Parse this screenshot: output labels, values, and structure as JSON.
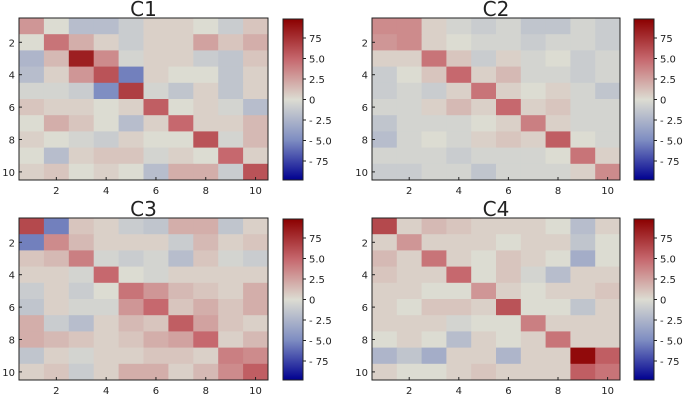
{
  "chart_data": [
    {
      "type": "heatmap",
      "title": "C1",
      "colormap": "diverging blue-white-red",
      "vmin": -1,
      "vmax": 1,
      "xticks": [
        "2",
        "4",
        "6",
        "8",
        "10"
      ],
      "yticks": [
        "2",
        "4",
        "6",
        "8",
        "10"
      ],
      "colorbar_ticks": [
        "75",
        "5.0",
        "2.5",
        "0",
        "- 2.5",
        "- 5.0",
        "- 75"
      ],
      "matrix": [
        [
          0.3,
          0.0,
          -0.2,
          -0.2,
          -0.1,
          0.05,
          0.05,
          0.0,
          -0.1,
          0.1
        ],
        [
          0.0,
          0.45,
          0.2,
          0.05,
          -0.1,
          0.05,
          0.05,
          0.25,
          0.1,
          0.2
        ],
        [
          -0.25,
          0.15,
          0.85,
          0.35,
          -0.05,
          0.05,
          0.05,
          -0.1,
          -0.15,
          0.1
        ],
        [
          -0.2,
          0.05,
          0.3,
          0.6,
          -0.55,
          0.05,
          0.0,
          0.0,
          -0.15,
          0.05
        ],
        [
          -0.05,
          -0.05,
          -0.1,
          -0.5,
          0.7,
          -0.05,
          -0.15,
          0.05,
          -0.15,
          0.05
        ],
        [
          0.1,
          0.05,
          0.05,
          0.0,
          0.05,
          0.55,
          0.0,
          0.05,
          -0.05,
          -0.2
        ],
        [
          0.0,
          0.2,
          0.1,
          0.0,
          -0.2,
          0.05,
          0.5,
          0.05,
          0.05,
          0.15
        ],
        [
          0.05,
          0.0,
          -0.05,
          -0.1,
          0.05,
          0.0,
          0.0,
          0.6,
          -0.05,
          0.15
        ],
        [
          0.0,
          -0.2,
          0.05,
          0.1,
          0.1,
          -0.05,
          0.05,
          0.0,
          0.5,
          0.05
        ],
        [
          0.05,
          0.1,
          0.0,
          0.05,
          0.0,
          -0.2,
          0.2,
          0.2,
          -0.1,
          0.6
        ]
      ]
    },
    {
      "type": "heatmap",
      "title": "C2",
      "colormap": "diverging blue-white-red",
      "vmin": -1,
      "vmax": 1,
      "xticks": [
        "2",
        "4",
        "6",
        "8",
        "10"
      ],
      "yticks": [
        "2",
        "4",
        "6",
        "8",
        "10"
      ],
      "colorbar_ticks": [
        "75",
        "5.0",
        "2.5",
        "0",
        "- 2.5",
        "- 5.0",
        "- 75"
      ],
      "matrix": [
        [
          0.35,
          0.35,
          0.05,
          -0.05,
          -0.1,
          -0.05,
          -0.15,
          -0.15,
          -0.05,
          -0.1
        ],
        [
          0.3,
          0.35,
          0.05,
          0.0,
          -0.05,
          -0.05,
          -0.1,
          -0.05,
          -0.05,
          -0.1
        ],
        [
          0.05,
          0.05,
          0.45,
          0.1,
          -0.1,
          0.05,
          -0.05,
          0.0,
          -0.1,
          -0.05
        ],
        [
          -0.1,
          0.0,
          0.1,
          0.5,
          0.05,
          0.15,
          -0.05,
          -0.05,
          -0.1,
          -0.05
        ],
        [
          -0.1,
          -0.05,
          -0.1,
          0.05,
          0.45,
          0.05,
          0.0,
          0.05,
          -0.05,
          -0.15
        ],
        [
          -0.05,
          -0.05,
          0.05,
          0.15,
          0.05,
          0.5,
          0.05,
          0.1,
          -0.05,
          -0.05
        ],
        [
          -0.15,
          -0.05,
          -0.05,
          -0.05,
          0.0,
          0.05,
          0.4,
          0.05,
          -0.05,
          -0.05
        ],
        [
          -0.2,
          -0.05,
          0.0,
          -0.05,
          0.05,
          0.1,
          0.05,
          0.55,
          0.0,
          -0.05
        ],
        [
          -0.05,
          -0.05,
          -0.05,
          -0.1,
          -0.05,
          -0.05,
          -0.05,
          0.0,
          0.45,
          0.05
        ],
        [
          -0.1,
          -0.1,
          -0.05,
          -0.05,
          -0.15,
          -0.05,
          -0.05,
          -0.05,
          0.05,
          0.35
        ]
      ]
    },
    {
      "type": "heatmap",
      "title": "C3",
      "colormap": "diverging blue-white-red",
      "vmin": -1,
      "vmax": 1,
      "xticks": [
        "2",
        "4",
        "6",
        "8",
        "10"
      ],
      "yticks": [
        "2",
        "4",
        "6",
        "8",
        "10"
      ],
      "colorbar_ticks": [
        "75",
        "5.0",
        "2.5",
        "0",
        "- 2.5",
        "- 5.0",
        "- 75"
      ],
      "matrix": [
        [
          0.65,
          -0.55,
          0.1,
          0.05,
          -0.1,
          -0.15,
          0.2,
          0.2,
          -0.15,
          0.05
        ],
        [
          -0.55,
          0.35,
          0.15,
          0.05,
          0.05,
          0.05,
          -0.1,
          0.15,
          0.05,
          0.1
        ],
        [
          0.1,
          0.15,
          0.4,
          -0.05,
          -0.1,
          -0.05,
          -0.2,
          0.1,
          -0.05,
          -0.1
        ],
        [
          0.05,
          0.05,
          -0.05,
          0.5,
          0.0,
          -0.05,
          0.05,
          0.05,
          0.05,
          0.05
        ],
        [
          -0.1,
          0.05,
          -0.1,
          0.0,
          0.45,
          0.3,
          0.15,
          0.1,
          0.05,
          0.2
        ],
        [
          -0.15,
          0.05,
          -0.05,
          -0.05,
          0.3,
          0.5,
          0.1,
          0.2,
          0.1,
          0.2
        ],
        [
          0.2,
          -0.1,
          -0.2,
          0.05,
          0.15,
          0.1,
          0.55,
          0.25,
          0.1,
          0.05
        ],
        [
          0.2,
          0.15,
          0.1,
          0.05,
          0.1,
          0.2,
          0.25,
          0.5,
          0.05,
          0.15
        ],
        [
          -0.15,
          0.05,
          -0.05,
          0.05,
          0.05,
          0.1,
          0.1,
          0.05,
          0.4,
          0.35
        ],
        [
          0.05,
          0.1,
          -0.1,
          0.05,
          0.2,
          0.2,
          0.05,
          0.15,
          0.35,
          0.55
        ]
      ]
    },
    {
      "type": "heatmap",
      "title": "C4",
      "colormap": "diverging blue-white-red",
      "vmin": -1,
      "vmax": 1,
      "xticks": [
        "2",
        "4",
        "6",
        "8",
        "10"
      ],
      "yticks": [
        "2",
        "4",
        "6",
        "8",
        "10"
      ],
      "colorbar_ticks": [
        "75",
        "5.0",
        "2.5",
        "0",
        "- 2.5",
        "- 5.0",
        "- 75"
      ],
      "matrix": [
        [
          0.65,
          0.05,
          0.15,
          0.1,
          0.05,
          0.05,
          0.05,
          0.0,
          -0.2,
          0.05
        ],
        [
          0.05,
          0.3,
          0.05,
          0.05,
          0.05,
          0.0,
          0.05,
          0.05,
          -0.15,
          0.0
        ],
        [
          0.15,
          0.05,
          0.45,
          0.05,
          0.0,
          0.1,
          0.05,
          0.0,
          -0.3,
          0.0
        ],
        [
          0.1,
          0.05,
          0.05,
          0.5,
          0.0,
          0.1,
          -0.05,
          -0.2,
          0.05,
          0.05
        ],
        [
          0.05,
          0.05,
          0.0,
          0.0,
          0.3,
          0.05,
          0.0,
          0.05,
          0.05,
          0.1
        ],
        [
          0.05,
          0.0,
          0.1,
          0.1,
          0.05,
          0.6,
          0.0,
          0.0,
          -0.15,
          0.05
        ],
        [
          0.05,
          0.05,
          0.05,
          -0.05,
          0.0,
          0.0,
          0.4,
          0.05,
          0.05,
          0.05
        ],
        [
          0.0,
          0.05,
          0.0,
          -0.2,
          0.05,
          0.0,
          0.05,
          0.45,
          0.05,
          0.05
        ],
        [
          -0.25,
          -0.15,
          -0.3,
          0.05,
          0.05,
          -0.25,
          0.05,
          0.05,
          0.95,
          0.55
        ],
        [
          0.05,
          0.0,
          0.0,
          0.05,
          0.1,
          0.05,
          0.05,
          0.05,
          0.55,
          0.45
        ]
      ]
    }
  ]
}
